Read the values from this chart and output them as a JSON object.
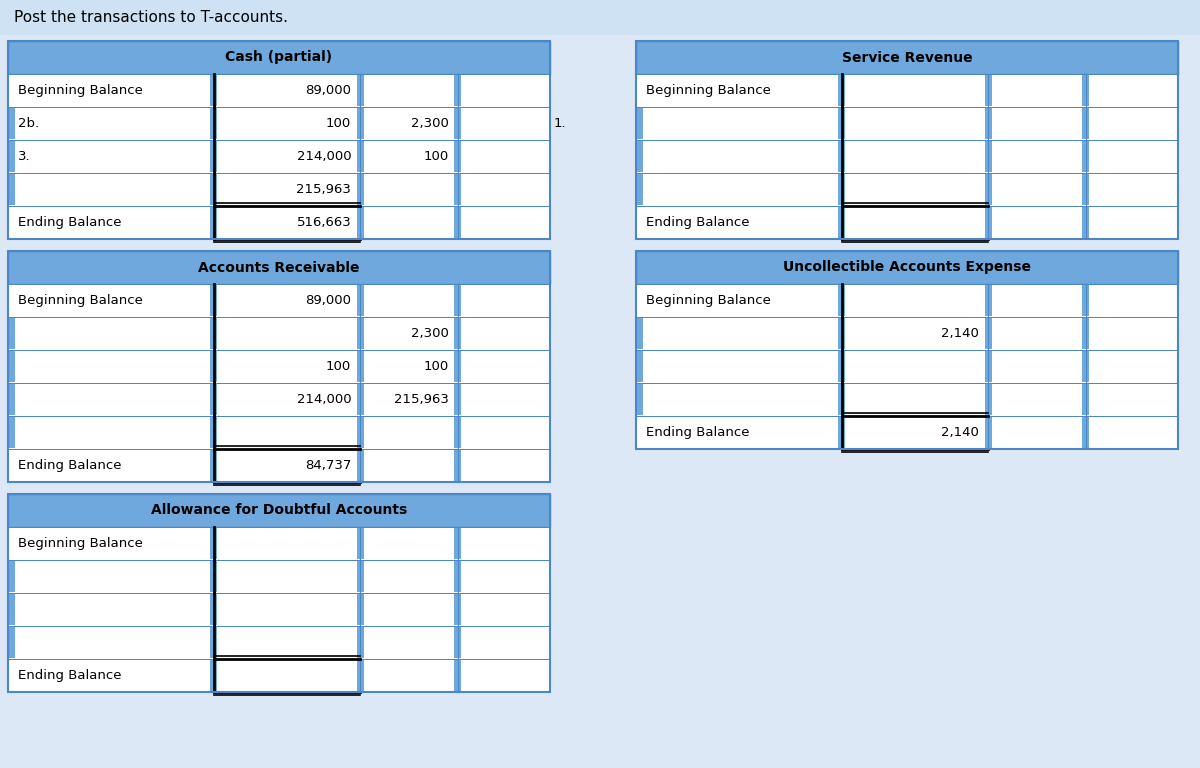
{
  "title": "Post the transactions to T-accounts.",
  "title_bg": "#cfe2f3",
  "header_bg": "#6fa8dc",
  "border_color": "#4a86c8",
  "page_bg": "#dce8f5",
  "accounts": [
    {
      "name": "Cash (partial)",
      "col": "left",
      "col_splits": [
        0.38,
        0.65,
        0.83
      ],
      "rows": [
        {
          "label": "Beginning Balance",
          "debit": "89,000",
          "credit": "",
          "extra": ""
        },
        {
          "label": "2b.",
          "debit": "100",
          "credit": "2,300",
          "extra": "1."
        },
        {
          "label": "3.",
          "debit": "214,000",
          "credit": "100",
          "extra": ""
        },
        {
          "label": "",
          "debit": "215,963",
          "credit": "",
          "extra": ""
        },
        {
          "label": "Ending Balance",
          "debit": "516,663",
          "credit": "",
          "extra": ""
        }
      ],
      "ending_row": 4
    },
    {
      "name": "Accounts Receivable",
      "col": "left",
      "col_splits": [
        0.38,
        0.65,
        0.83
      ],
      "rows": [
        {
          "label": "Beginning Balance",
          "debit": "89,000",
          "credit": "",
          "extra": ""
        },
        {
          "label": "",
          "debit": "",
          "credit": "2,300",
          "extra": ""
        },
        {
          "label": "",
          "debit": "100",
          "credit": "100",
          "extra": ""
        },
        {
          "label": "",
          "debit": "214,000",
          "credit": "215,963",
          "extra": ""
        },
        {
          "label": "",
          "debit": "",
          "credit": "",
          "extra": ""
        },
        {
          "label": "Ending Balance",
          "debit": "84,737",
          "credit": "",
          "extra": ""
        }
      ],
      "ending_row": 5
    },
    {
      "name": "Allowance for Doubtful Accounts",
      "col": "left",
      "col_splits": [
        0.38,
        0.65,
        0.83
      ],
      "rows": [
        {
          "label": "Beginning Balance",
          "debit": "",
          "credit": "",
          "extra": ""
        },
        {
          "label": "",
          "debit": "",
          "credit": "",
          "extra": ""
        },
        {
          "label": "",
          "debit": "",
          "credit": "",
          "extra": ""
        },
        {
          "label": "",
          "debit": "",
          "credit": "",
          "extra": ""
        },
        {
          "label": "Ending Balance",
          "debit": "",
          "credit": "",
          "extra": ""
        }
      ],
      "ending_row": 4
    },
    {
      "name": "Service Revenue",
      "col": "right",
      "col_splits": [
        0.38,
        0.65,
        0.83
      ],
      "rows": [
        {
          "label": "Beginning Balance",
          "debit": "",
          "credit": "",
          "extra": ""
        },
        {
          "label": "",
          "debit": "",
          "credit": "",
          "extra": ""
        },
        {
          "label": "",
          "debit": "",
          "credit": "",
          "extra": ""
        },
        {
          "label": "",
          "debit": "",
          "credit": "",
          "extra": ""
        },
        {
          "label": "Ending Balance",
          "debit": "",
          "credit": "",
          "extra": ""
        }
      ],
      "ending_row": 4
    },
    {
      "name": "Uncollectible Accounts Expense",
      "col": "right",
      "col_splits": [
        0.38,
        0.65,
        0.83
      ],
      "rows": [
        {
          "label": "Beginning Balance",
          "debit": "",
          "credit": "",
          "extra": ""
        },
        {
          "label": "",
          "debit": "2,140",
          "credit": "",
          "extra": ""
        },
        {
          "label": "",
          "debit": "",
          "credit": "",
          "extra": ""
        },
        {
          "label": "",
          "debit": "",
          "credit": "",
          "extra": ""
        },
        {
          "label": "Ending Balance",
          "debit": "2,140",
          "credit": "",
          "extra": ""
        }
      ],
      "ending_row": 4
    }
  ]
}
